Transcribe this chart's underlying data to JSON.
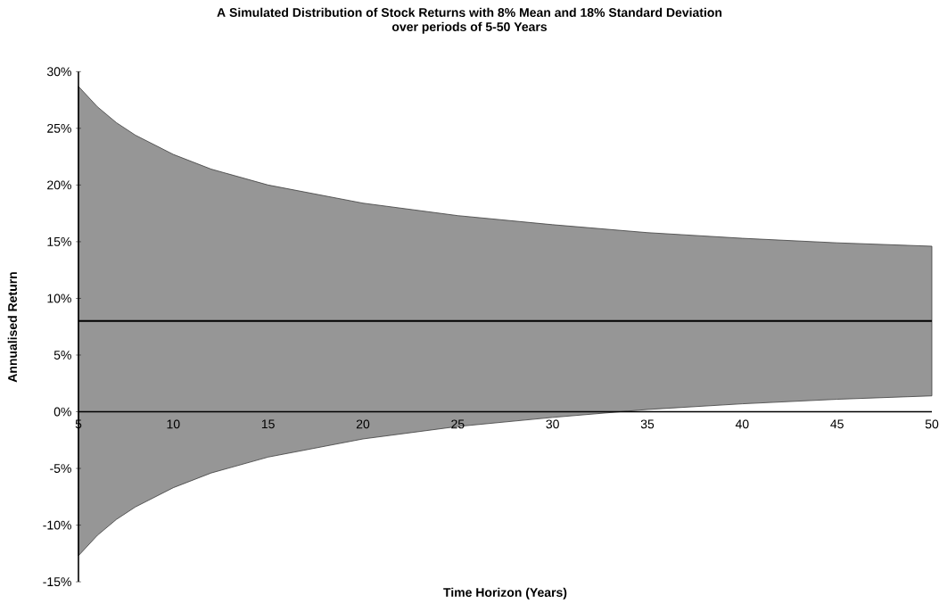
{
  "chart_data": {
    "type": "line",
    "title": "A Simulated Distribution of Stock Returns with 8% Mean and 18% Standard Deviation",
    "subtitle": "over periods of 5-50 Years",
    "xlabel": "Time Horizon (Years)",
    "ylabel": "Annualised Return",
    "x": [
      5,
      6,
      7,
      8,
      10,
      12,
      15,
      20,
      25,
      30,
      35,
      40,
      45,
      50
    ],
    "series": [
      {
        "color": "#000000",
        "values": [
          8,
          8,
          8,
          8,
          8,
          8,
          8,
          8,
          8,
          8,
          8,
          8,
          8,
          8
        ],
        "lower": [
          -12.7,
          -10.9,
          -9.5,
          -8.4,
          -6.7,
          -5.4,
          -4.0,
          -2.4,
          -1.3,
          -0.5,
          0.2,
          0.7,
          1.1,
          1.4
        ],
        "upper": [
          28.7,
          26.9,
          25.5,
          24.4,
          22.7,
          21.4,
          20.0,
          18.4,
          17.3,
          16.5,
          15.8,
          15.3,
          14.9,
          14.6
        ]
      }
    ],
    "xlim": [
      5,
      50
    ],
    "ylim": [
      -15,
      30
    ],
    "xticks": [
      5,
      10,
      15,
      20,
      25,
      30,
      35,
      40,
      45,
      50
    ],
    "yticks": [
      {
        "value": -15,
        "label": "-15%"
      },
      {
        "value": -10,
        "label": "-10%"
      },
      {
        "value": -5,
        "label": "-5%"
      },
      {
        "value": 0,
        "label": "0%"
      },
      {
        "value": 5,
        "label": "5%"
      },
      {
        "value": 10,
        "label": "10%"
      },
      {
        "value": 15,
        "label": "15%"
      },
      {
        "value": 20,
        "label": "20%"
      },
      {
        "value": 25,
        "label": "25%"
      },
      {
        "value": 30,
        "label": "30%"
      }
    ],
    "grid": false,
    "marker": "none",
    "line_style": "solid"
  }
}
